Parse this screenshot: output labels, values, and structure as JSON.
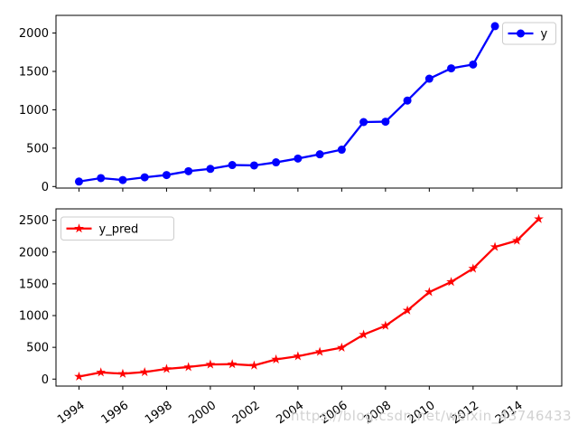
{
  "figure": {
    "watermark": "https://blog.csdn.net/weixin_43746433",
    "watermark_color": "#d2d2d2",
    "background": "#ffffff",
    "axis_color": "#000000",
    "legend_border_color": "#cccccc"
  },
  "chart_data": [
    {
      "type": "line",
      "subplot": "top",
      "title": "",
      "xlabel": "",
      "ylabel": "",
      "x": [
        1994,
        1995,
        1996,
        1997,
        1998,
        1999,
        2000,
        2001,
        2002,
        2003,
        2004,
        2005,
        2006,
        2007,
        2008,
        2009,
        2010,
        2011,
        2012,
        2013
      ],
      "series": [
        {
          "name": "y",
          "color": "#0000ff",
          "marker": "circle",
          "values": [
            65,
            110,
            85,
            120,
            150,
            200,
            230,
            280,
            275,
            315,
            365,
            420,
            480,
            840,
            845,
            1120,
            1405,
            1540,
            1590,
            2090
          ]
        }
      ],
      "legend": {
        "labels": [
          "y"
        ],
        "position": "upper right"
      },
      "xlim": [
        1992.95,
        2016.05
      ],
      "ylim": [
        -20,
        2230
      ],
      "yticks": [
        0,
        500,
        1000,
        1500,
        2000
      ],
      "xticks": [
        1994,
        1996,
        1998,
        2000,
        2002,
        2004,
        2006,
        2008,
        2010,
        2012,
        2014
      ],
      "xtick_labels_visible": false,
      "xtick_rotation": 35,
      "grid": false
    },
    {
      "type": "line",
      "subplot": "bottom",
      "title": "",
      "xlabel": "",
      "ylabel": "",
      "x": [
        1994,
        1995,
        1996,
        1997,
        1998,
        1999,
        2000,
        2001,
        2002,
        2003,
        2004,
        2005,
        2006,
        2007,
        2008,
        2009,
        2010,
        2011,
        2012,
        2013,
        2014,
        2015
      ],
      "series": [
        {
          "name": "y_pred",
          "color": "#ff0000",
          "marker": "star",
          "values": [
            40,
            105,
            85,
            110,
            160,
            190,
            230,
            235,
            215,
            310,
            360,
            430,
            495,
            700,
            840,
            1080,
            1370,
            1530,
            1740,
            2080,
            2180,
            2520
          ]
        }
      ],
      "legend": {
        "labels": [
          "y_pred"
        ],
        "position": "upper left"
      },
      "xlim": [
        1992.95,
        2016.05
      ],
      "ylim": [
        -110,
        2680
      ],
      "yticks": [
        0,
        500,
        1000,
        1500,
        2000,
        2500
      ],
      "xticks": [
        1994,
        1996,
        1998,
        2000,
        2002,
        2004,
        2006,
        2008,
        2010,
        2012,
        2014
      ],
      "xtick_labels_visible": true,
      "xtick_rotation": 35,
      "grid": false
    }
  ]
}
